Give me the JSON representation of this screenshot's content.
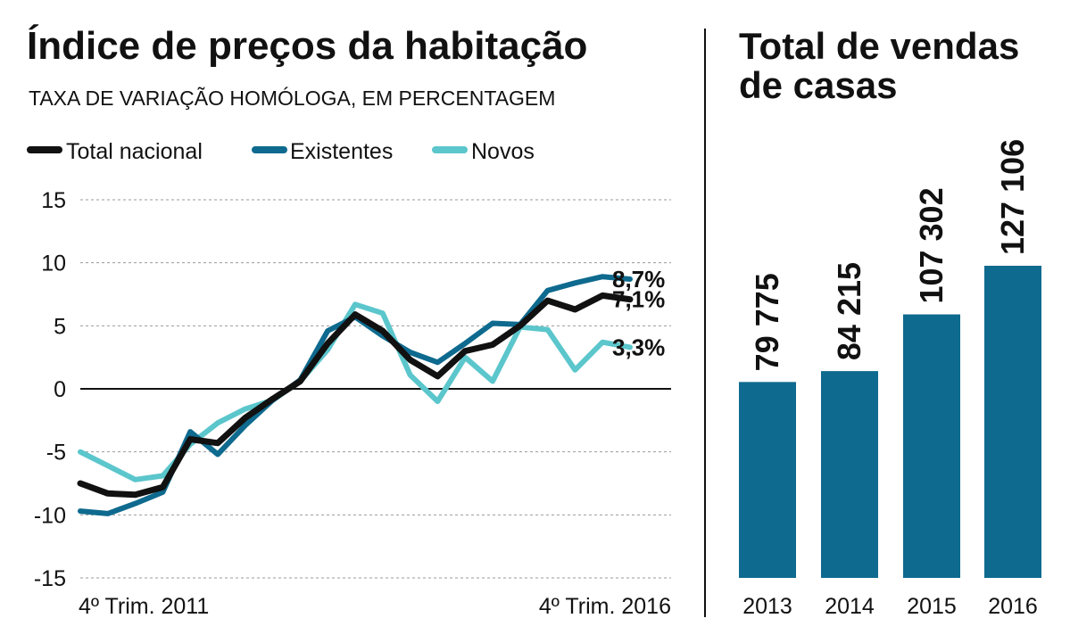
{
  "colors": {
    "total": "#111111",
    "existentes": "#0e6a8e",
    "novos": "#5bc6cc",
    "bar": "#0e6a8e",
    "grid": "#999999"
  },
  "chart_data": [
    {
      "type": "line",
      "title": "Índice de preços da habitação",
      "subtitle": "TAXA DE VARIAÇÃO HOMÓLOGA, EM PERCENTAGEM",
      "legend_position": "top-left",
      "ylim": [
        -15,
        15
      ],
      "yticks": [
        "15",
        "10",
        "5",
        "0",
        "-5",
        "-10",
        "-15"
      ],
      "x_labels": [
        "4º Trim. 2011",
        "4º Trim. 2016"
      ],
      "grid": true,
      "series": [
        {
          "key": "total",
          "name": "Total nacional",
          "values": [
            -7.5,
            -8.3,
            -8.4,
            -7.8,
            -4.0,
            -4.3,
            -2.3,
            -0.8,
            0.6,
            3.6,
            5.9,
            4.6,
            2.3,
            1.0,
            3.0,
            3.5,
            5.0,
            7.0,
            6.3,
            7.4,
            7.1
          ],
          "end_label": "7,1%"
        },
        {
          "key": "existentes",
          "name": "Existentes",
          "values": [
            -9.7,
            -9.9,
            -9.1,
            -8.2,
            -3.4,
            -5.2,
            -2.9,
            -0.9,
            0.7,
            4.6,
            5.7,
            4.2,
            2.9,
            2.1,
            3.6,
            5.2,
            5.1,
            7.8,
            8.4,
            8.9,
            8.7
          ],
          "end_label": "8,7%"
        },
        {
          "key": "novos",
          "name": "Novos",
          "values": [
            -5.0,
            -6.1,
            -7.2,
            -6.9,
            -4.4,
            -2.7,
            -1.6,
            -0.9,
            0.6,
            3.1,
            6.7,
            6.0,
            1.1,
            -1.0,
            2.5,
            0.6,
            4.9,
            4.7,
            1.5,
            3.7,
            3.3
          ],
          "end_label": "3,3%"
        }
      ]
    },
    {
      "type": "bar",
      "title": "Total de vendas de casas",
      "title_lines": [
        "Total de vendas",
        "de casas"
      ],
      "categories": [
        "2013",
        "2014",
        "2015",
        "2016"
      ],
      "values": [
        79775,
        84215,
        107302,
        127106
      ],
      "value_labels": [
        "79 775",
        "84 215",
        "107 302",
        "127 106"
      ],
      "ylim": [
        0,
        127106
      ]
    }
  ]
}
